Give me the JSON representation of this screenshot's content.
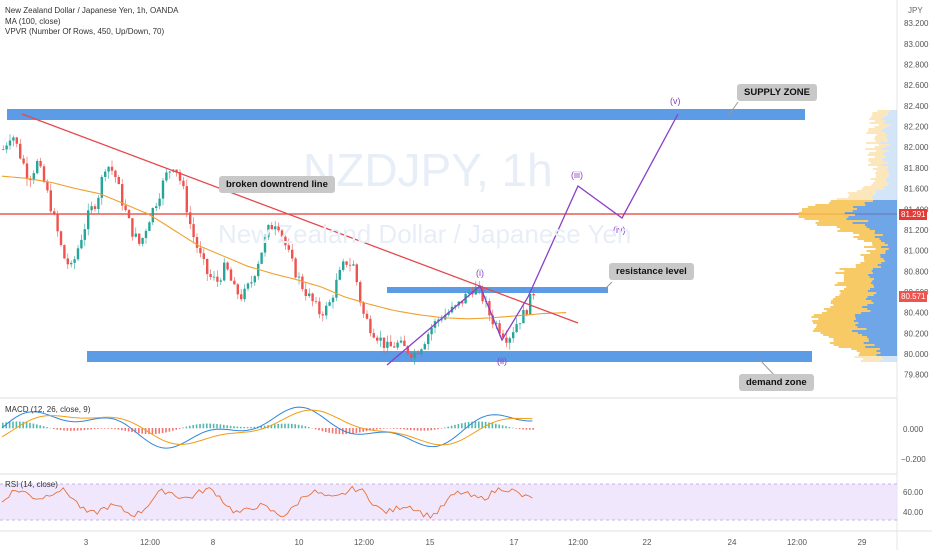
{
  "header": {
    "title": "New Zealand Dollar / Japanese Yen, 1h, OANDA",
    "ma_label": "MA (100, close)",
    "vpvr_label": "VPVR (Number Of Rows, 450, Up/Down, 70)",
    "currency": "JPY"
  },
  "watermark": {
    "symbol": "NZDJPY, 1h",
    "name": "New Zealand Dollar / Japanese Yen"
  },
  "annotations": {
    "supply_zone": "SUPPLY ZONE",
    "broken_downtrend": "broken downtrend line",
    "resistance": "resistance level",
    "demand_zone": "demand zone",
    "waves": [
      "(i)",
      "(ii)",
      "(iii)",
      "(iv)",
      "(v)"
    ]
  },
  "price_tags": {
    "resistance_line": "81.291",
    "last_price": "80.571"
  },
  "macd_panel": {
    "label": "MACD (12, 26, close, 9)",
    "ticks": [
      "0.000",
      "−0.200"
    ]
  },
  "rsi_panel": {
    "label": "RSI (14, close)",
    "ticks": [
      "60.00",
      "40.00"
    ]
  },
  "price_axis": {
    "ticks": [
      "83.200",
      "83.000",
      "82.800",
      "82.600",
      "82.400",
      "82.200",
      "82.000",
      "81.800",
      "81.600",
      "81.400",
      "81.200",
      "81.000",
      "80.800",
      "80.600",
      "80.400",
      "80.200",
      "80.000",
      "79.800"
    ]
  },
  "time_axis": {
    "ticks": [
      "3",
      "12:00",
      "8",
      "10",
      "12:00",
      "15",
      "17",
      "12:00",
      "22",
      "24",
      "12:00",
      "29"
    ]
  },
  "colors": {
    "zone": "#4a90e2",
    "trendline": "#e5484d",
    "resistance_line": "#e53935",
    "ma": "#f0a030",
    "wave": "#8a3fc8",
    "up_candle": "#26a69a",
    "down_candle": "#ef5350",
    "rsi_band": "#ede1fb"
  },
  "chart_data": {
    "type": "candlestick",
    "title": "New Zealand Dollar / Japanese Yen, 1h, OANDA",
    "ylim": [
      79.7,
      83.25
    ],
    "close_path": [
      81.98,
      82.15,
      81.92,
      81.7,
      81.85,
      81.6,
      81.3,
      80.95,
      80.82,
      81.1,
      81.35,
      81.5,
      81.85,
      81.75,
      81.45,
      81.2,
      81.05,
      81.3,
      81.5,
      81.72,
      81.85,
      81.6,
      81.2,
      80.95,
      80.75,
      80.7,
      80.85,
      80.62,
      80.55,
      80.7,
      80.95,
      81.2,
      81.3,
      81.05,
      80.82,
      80.65,
      80.52,
      80.4,
      80.45,
      80.7,
      80.9,
      80.85,
      80.4,
      80.25,
      80.15,
      80.05,
      80.1,
      80.05,
      80.0,
      80.1,
      80.25,
      80.35,
      80.4,
      80.45,
      80.55,
      80.65,
      80.55,
      80.35,
      80.25,
      80.15,
      80.3,
      80.4,
      80.6
    ],
    "ma_path": [
      81.72,
      81.7,
      81.66,
      81.6,
      81.55,
      81.45,
      81.35,
      81.2,
      81.05,
      80.95,
      80.85,
      80.78,
      80.72,
      80.65,
      80.55,
      80.48,
      80.42,
      80.38,
      80.35,
      80.34,
      80.35,
      80.37,
      80.39,
      80.4
    ],
    "supply_zone": [
      82.16,
      82.22
    ],
    "demand_zone": [
      79.98,
      80.04
    ],
    "resistance_level": 80.66,
    "horizontal_line": 81.291,
    "last_price": 80.571,
    "waves": [
      {
        "label": "(i)",
        "y": 80.66
      },
      {
        "label": "(ii)",
        "y": 80.12
      },
      {
        "label": "(iii)",
        "y": 81.55
      },
      {
        "label": "(iv)",
        "y": 81.3
      },
      {
        "label": "(v)",
        "y": 82.24
      }
    ],
    "macd_ticks": [
      0.0,
      -0.2
    ],
    "rsi_ticks": [
      60,
      40
    ]
  }
}
